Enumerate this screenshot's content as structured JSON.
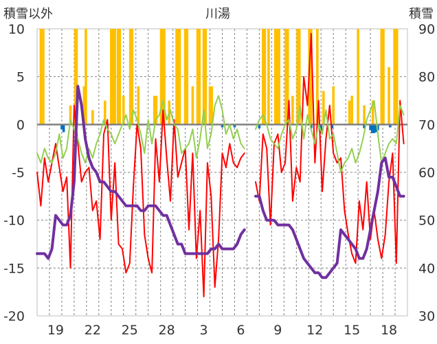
{
  "chart_data": {
    "type": "line",
    "title": "川湯",
    "left_axis_label": "積雪以外",
    "right_axis_label": "積雪",
    "left_ylim": [
      -20,
      10
    ],
    "left_yticks": [
      "10",
      "5",
      "0",
      "-5",
      "-10",
      "-15",
      "-20"
    ],
    "right_ylim": [
      30,
      90
    ],
    "right_yticks": [
      "90",
      "80",
      "70",
      "60",
      "50",
      "40",
      "30"
    ],
    "x_tick_labels": [
      "19",
      "22",
      "25",
      "28",
      "3",
      "6",
      "9",
      "12",
      "15",
      "18"
    ],
    "x_tick_day_index": [
      1,
      4,
      7,
      10,
      13,
      16,
      19,
      22,
      25,
      28
    ],
    "day_count": 30,
    "grid": true,
    "colors": {
      "temp_max": "#ff0000",
      "temp_min": "#92d050",
      "snow_depth": "#7030a0",
      "precip_top": "#ffc000",
      "precip_bottom": "#0070c0",
      "grid": "#7f7f7f",
      "zero_line": "#808080"
    },
    "series": [
      {
        "name": "",
        "axis": "left",
        "color": "#ff0000",
        "x": [
          0.0,
          0.3,
          0.6,
          0.9,
          1.2,
          1.5,
          1.8,
          2.1,
          2.4,
          2.7,
          3.0,
          3.3,
          3.6,
          3.9,
          4.2,
          4.5,
          4.8,
          5.1,
          5.4,
          5.7,
          6.0,
          6.3,
          6.6,
          6.9,
          7.2,
          7.5,
          7.8,
          8.1,
          8.4,
          8.7,
          9.0,
          9.3,
          9.6,
          9.9,
          10.2,
          10.5,
          10.8,
          11.1,
          11.4,
          11.7,
          12.0,
          12.3,
          12.6,
          12.9,
          13.2,
          13.5,
          13.8,
          14.1,
          14.4,
          14.7,
          15.0,
          15.3,
          15.6,
          15.9,
          16.2,
          16.5,
          16.8,
          17.1,
          17.4,
          17.7,
          18.0,
          18.3,
          18.6,
          18.9,
          19.2,
          19.5,
          19.8,
          20.1,
          20.4,
          20.7,
          21.0,
          21.3,
          21.6,
          21.9,
          22.2,
          22.5,
          22.8,
          23.1,
          23.4,
          23.7,
          24.0,
          24.3,
          24.6,
          24.9,
          25.2,
          25.5,
          25.8,
          26.1,
          26.4,
          26.7,
          27.0,
          27.3,
          27.6,
          27.9,
          28.2,
          28.5,
          28.8,
          29.1,
          29.4,
          29.7
        ],
        "values": [
          -5.0,
          -8.5,
          -3.5,
          -6.0,
          -4.0,
          -2.0,
          -4.5,
          -7.0,
          -5.5,
          -15.0,
          2.0,
          -2.0,
          -6.0,
          -5.0,
          -4.5,
          -9.0,
          -8.0,
          -12.0,
          -1.0,
          0.5,
          -10.0,
          -4.0,
          -12.5,
          -13.0,
          -15.5,
          -14.5,
          -6.5,
          0.0,
          -2.5,
          -11.5,
          -14.0,
          -15.5,
          -1.5,
          -6.0,
          1.5,
          -3.5,
          -8.0,
          0.5,
          -5.5,
          -4.0,
          -2.5,
          -11.0,
          -3.0,
          -14.0,
          -9.0,
          -18.0,
          -4.0,
          -7.5,
          -17.0,
          -12.0,
          -3.0,
          -4.5,
          -2.0,
          -4.0,
          -4.5,
          -3.5,
          -3.0,
          null,
          null,
          -6.0,
          -8.0,
          -1.0,
          -2.5,
          -10.5,
          -2.0,
          -1.0,
          -5.0,
          -4.0,
          2.5,
          -8.0,
          -4.5,
          -6.0,
          5.0,
          2.0,
          9.5,
          -4.0,
          2.5,
          -7.0,
          -1.5,
          2.0,
          -3.0,
          -4.0,
          -3.5,
          -9.0,
          -11.5,
          -13.5,
          -14.5,
          -8.0,
          -11.0,
          -6.0,
          -12.0,
          -9.0,
          -12.0,
          -14.0,
          -11.5,
          -6.0,
          -3.0,
          -14.5,
          2.5,
          -2.0
        ]
      },
      {
        "name": "",
        "axis": "left",
        "color": "#92d050",
        "x": [
          0.0,
          0.3,
          0.6,
          0.9,
          1.2,
          1.5,
          1.8,
          2.1,
          2.4,
          2.7,
          3.0,
          3.3,
          3.6,
          3.9,
          4.2,
          4.5,
          4.8,
          5.1,
          5.4,
          5.7,
          6.0,
          6.3,
          6.6,
          6.9,
          7.2,
          7.5,
          7.8,
          8.1,
          8.4,
          8.7,
          9.0,
          9.3,
          9.6,
          9.9,
          10.2,
          10.5,
          10.8,
          11.1,
          11.4,
          11.7,
          12.0,
          12.3,
          12.6,
          12.9,
          13.2,
          13.5,
          13.8,
          14.1,
          14.4,
          14.7,
          15.0,
          15.3,
          15.6,
          15.9,
          16.2,
          16.5,
          16.8,
          17.1,
          17.4,
          17.7,
          18.0,
          18.3,
          18.6,
          18.9,
          19.2,
          19.5,
          19.8,
          20.1,
          20.4,
          20.7,
          21.0,
          21.3,
          21.6,
          21.9,
          22.2,
          22.5,
          22.8,
          23.1,
          23.4,
          23.7,
          24.0,
          24.3,
          24.6,
          24.9,
          25.2,
          25.5,
          25.8,
          26.1,
          26.4,
          26.7,
          27.0,
          27.3,
          27.6,
          27.9,
          28.2,
          28.5,
          28.8,
          29.1,
          29.4,
          29.7
        ],
        "values": [
          -3.0,
          -4.0,
          -2.5,
          -3.5,
          -4.0,
          -3.0,
          -1.0,
          -3.5,
          -2.5,
          0.5,
          -0.5,
          -1.5,
          -3.0,
          -4.0,
          -2.5,
          -3.5,
          -2.0,
          -1.0,
          0.5,
          -0.5,
          -1.0,
          -2.0,
          -1.0,
          0.0,
          1.0,
          -0.5,
          1.5,
          0.5,
          -1.0,
          -3.0,
          0.5,
          -2.0,
          0.5,
          1.0,
          2.5,
          0.5,
          1.5,
          0.0,
          -0.5,
          -3.0,
          -2.5,
          -2.0,
          -0.5,
          -3.5,
          -1.5,
          1.5,
          -2.5,
          -1.0,
          2.0,
          3.0,
          1.5,
          -1.0,
          0.0,
          -1.5,
          -0.5,
          -2.0,
          -2.5,
          null,
          null,
          -0.5,
          0.5,
          1.0,
          0.0,
          -1.5,
          -2.0,
          -2.5,
          -1.0,
          0.0,
          0.5,
          -1.5,
          -0.5,
          2.0,
          -1.5,
          1.0,
          -0.5,
          -2.0,
          0.0,
          -1.0,
          1.5,
          -1.5,
          -1.0,
          -3.0,
          -5.0,
          -4.0,
          -3.5,
          -2.5,
          -4.0,
          -3.0,
          -1.5,
          0.5,
          1.5,
          2.5,
          -1.0,
          -4.0,
          -3.0,
          -2.0,
          -1.5,
          -2.0,
          2.0,
          1.0
        ]
      },
      {
        "name": "",
        "axis": "right",
        "color": "#7030a0",
        "x": [
          0.0,
          0.3,
          0.6,
          0.9,
          1.2,
          1.5,
          1.8,
          2.1,
          2.4,
          2.7,
          3.0,
          3.3,
          3.6,
          3.9,
          4.2,
          4.5,
          4.8,
          5.1,
          5.4,
          5.7,
          6.0,
          6.3,
          6.6,
          6.9,
          7.2,
          7.5,
          7.8,
          8.1,
          8.4,
          8.7,
          9.0,
          9.3,
          9.6,
          9.9,
          10.2,
          10.5,
          10.8,
          11.1,
          11.4,
          11.7,
          12.0,
          12.3,
          12.6,
          12.9,
          13.2,
          13.5,
          13.8,
          14.1,
          14.4,
          14.7,
          15.0,
          15.3,
          15.6,
          15.9,
          16.2,
          16.5,
          16.8,
          17.1,
          17.4,
          17.7,
          18.0,
          18.3,
          18.6,
          18.9,
          19.2,
          19.5,
          19.8,
          20.1,
          20.4,
          20.7,
          21.0,
          21.3,
          21.6,
          21.9,
          22.2,
          22.5,
          22.8,
          23.1,
          23.4,
          23.7,
          24.0,
          24.3,
          24.6,
          24.9,
          25.2,
          25.5,
          25.8,
          26.1,
          26.4,
          26.7,
          27.0,
          27.3,
          27.6,
          27.9,
          28.2,
          28.5,
          28.8,
          29.1,
          29.4,
          29.7
        ],
        "values": [
          43,
          43,
          43,
          42,
          44,
          51,
          50,
          49,
          49,
          51,
          58,
          78,
          74,
          67,
          63,
          61,
          60,
          58,
          58,
          57,
          56,
          56,
          55,
          54,
          53,
          53,
          53,
          53,
          52,
          52,
          53,
          53,
          53,
          52,
          51,
          51,
          49,
          47,
          45,
          45,
          43,
          43,
          43,
          43,
          43,
          43,
          43,
          44,
          44,
          45,
          44,
          44,
          44,
          44,
          45,
          47,
          48,
          null,
          null,
          55,
          55,
          52,
          50,
          50,
          50,
          49,
          49,
          49,
          49,
          48,
          46,
          44,
          42,
          41,
          40,
          39,
          39,
          38,
          38,
          39,
          40,
          41,
          48,
          47,
          46,
          45,
          44,
          42,
          42,
          44,
          48,
          52,
          56,
          62,
          63,
          59,
          59,
          57,
          55,
          55
        ]
      }
    ],
    "precipitation_top": {
      "axis": "left",
      "baseline": 0,
      "color": "#ffc000",
      "bars": [
        {
          "x": 0.3,
          "value": 10
        },
        {
          "x": 0.5,
          "value": 10
        },
        {
          "x": 2.7,
          "value": 2
        },
        {
          "x": 3.1,
          "value": 10
        },
        {
          "x": 3.2,
          "value": 10
        },
        {
          "x": 3.8,
          "value": 4
        },
        {
          "x": 3.95,
          "value": 10
        },
        {
          "x": 4.5,
          "value": 1.5
        },
        {
          "x": 5.5,
          "value": 2.5
        },
        {
          "x": 6.0,
          "value": 10
        },
        {
          "x": 6.15,
          "value": 10
        },
        {
          "x": 6.3,
          "value": 10
        },
        {
          "x": 6.55,
          "value": 10
        },
        {
          "x": 6.7,
          "value": 10
        },
        {
          "x": 7.0,
          "value": 3
        },
        {
          "x": 7.55,
          "value": 10
        },
        {
          "x": 7.7,
          "value": 10
        },
        {
          "x": 8.2,
          "value": 4
        },
        {
          "x": 9.5,
          "value": 3
        },
        {
          "x": 9.65,
          "value": 3
        },
        {
          "x": 10.05,
          "value": 10
        },
        {
          "x": 10.15,
          "value": 10
        },
        {
          "x": 10.3,
          "value": 10
        },
        {
          "x": 10.7,
          "value": 2.5
        },
        {
          "x": 11.3,
          "value": 10
        },
        {
          "x": 11.45,
          "value": 10
        },
        {
          "x": 11.55,
          "value": 10
        },
        {
          "x": 12.0,
          "value": 10
        },
        {
          "x": 12.15,
          "value": 10
        },
        {
          "x": 12.6,
          "value": 4
        },
        {
          "x": 13.0,
          "value": 10
        },
        {
          "x": 13.15,
          "value": 10
        },
        {
          "x": 13.5,
          "value": 10
        },
        {
          "x": 13.65,
          "value": 10
        },
        {
          "x": 14.0,
          "value": 4
        },
        {
          "x": 14.15,
          "value": 4
        },
        {
          "x": 18.3,
          "value": 10
        },
        {
          "x": 18.45,
          "value": 10
        },
        {
          "x": 18.75,
          "value": 10
        },
        {
          "x": 19.3,
          "value": 10
        },
        {
          "x": 19.45,
          "value": 10
        },
        {
          "x": 19.6,
          "value": 10
        },
        {
          "x": 20.15,
          "value": 10
        },
        {
          "x": 20.3,
          "value": 10
        },
        {
          "x": 20.7,
          "value": 3
        },
        {
          "x": 21.1,
          "value": 10
        },
        {
          "x": 21.25,
          "value": 10
        },
        {
          "x": 22.05,
          "value": 10
        },
        {
          "x": 22.2,
          "value": 10
        },
        {
          "x": 22.7,
          "value": 10
        },
        {
          "x": 23.2,
          "value": 3.5
        },
        {
          "x": 24.0,
          "value": 4
        },
        {
          "x": 25.3,
          "value": 2.5
        },
        {
          "x": 25.5,
          "value": 3
        },
        {
          "x": 26.0,
          "value": 10
        },
        {
          "x": 26.5,
          "value": 2
        },
        {
          "x": 27.2,
          "value": 2.5
        },
        {
          "x": 27.9,
          "value": 10
        },
        {
          "x": 28.05,
          "value": 10
        },
        {
          "x": 28.5,
          "value": 6
        },
        {
          "x": 28.95,
          "value": 10
        },
        {
          "x": 29.05,
          "value": 10
        },
        {
          "x": 29.15,
          "value": 10
        }
      ]
    },
    "precipitation_bottom": {
      "axis": "left",
      "baseline": 0,
      "color": "#0070c0",
      "bars": [
        {
          "x": 2.0,
          "value": -0.5
        },
        {
          "x": 2.15,
          "value": -0.8
        },
        {
          "x": 15.0,
          "value": -0.3
        },
        {
          "x": 16.0,
          "value": -0.3
        },
        {
          "x": 18.0,
          "value": -0.4
        },
        {
          "x": 22.2,
          "value": -0.4
        },
        {
          "x": 23.0,
          "value": -0.9
        },
        {
          "x": 23.9,
          "value": -0.4
        },
        {
          "x": 26.5,
          "value": -0.4
        },
        {
          "x": 27.0,
          "value": -0.6
        },
        {
          "x": 27.15,
          "value": -0.9
        },
        {
          "x": 27.3,
          "value": -0.9
        },
        {
          "x": 27.45,
          "value": -0.8
        },
        {
          "x": 27.6,
          "value": -0.6
        },
        {
          "x": 28.6,
          "value": -0.3
        }
      ]
    }
  }
}
